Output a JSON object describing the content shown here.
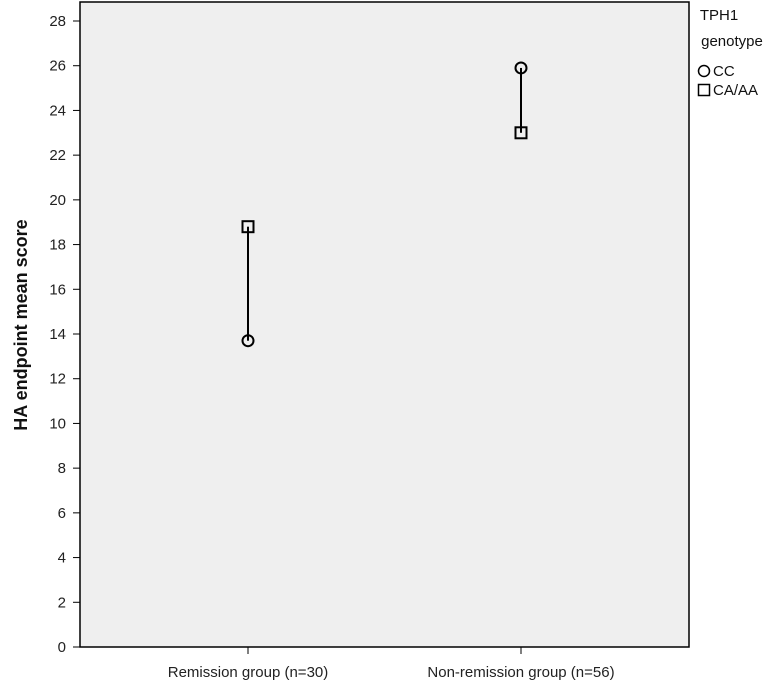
{
  "chart_data": {
    "type": "scatter",
    "title": "",
    "xlabel": "",
    "ylabel": "HA endpoint mean score",
    "categories": [
      "Remission group (n=30)",
      "Non-remission group (n=56)"
    ],
    "ylim": [
      0,
      29
    ],
    "yticks": [
      0,
      2,
      4,
      6,
      8,
      10,
      12,
      14,
      16,
      18,
      20,
      22,
      24,
      26,
      28
    ],
    "grid": false,
    "legend": {
      "title_lines": [
        "TPH1",
        "genotype"
      ],
      "placement": "right"
    },
    "series": [
      {
        "name": "CC",
        "marker": "circle",
        "values": [
          13.7,
          25.9
        ]
      },
      {
        "name": "CA/AA",
        "marker": "square",
        "values": [
          18.8,
          23.0
        ]
      }
    ],
    "connector_lines": true,
    "colors": {
      "plot_background": "#efefef",
      "marker": "#000000",
      "line": "#000000"
    }
  }
}
